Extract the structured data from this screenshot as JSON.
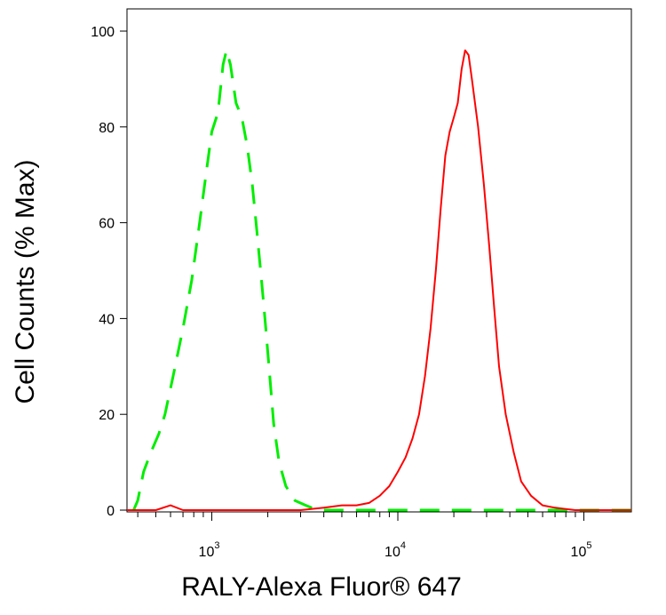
{
  "chart_data": {
    "type": "line",
    "xlabel": "RALY-Alexa Fluor® 647",
    "ylabel": "Cell Counts (% Max)",
    "x_scale": "log",
    "xlim": [
      350,
      180000
    ],
    "ylim": [
      0,
      100
    ],
    "yticks": [
      0,
      20,
      40,
      60,
      80,
      100
    ],
    "ytick_labels": [
      "0",
      "20",
      "40",
      "60",
      "80",
      "100"
    ],
    "xticks_major": [
      1000,
      10000,
      100000
    ],
    "xtick_bases": [
      "10",
      "10",
      "10"
    ],
    "xtick_exponents": [
      "3",
      "4",
      "5"
    ],
    "grid": false,
    "legend": "none",
    "series": [
      {
        "color": "#00ee00",
        "style": "dashed",
        "points": [
          [
            380,
            0
          ],
          [
            400,
            2
          ],
          [
            430,
            8
          ],
          [
            470,
            12
          ],
          [
            520,
            16
          ],
          [
            560,
            20
          ],
          [
            620,
            28
          ],
          [
            700,
            38
          ],
          [
            780,
            48
          ],
          [
            860,
            60
          ],
          [
            930,
            70
          ],
          [
            1000,
            79
          ],
          [
            1080,
            83
          ],
          [
            1150,
            93
          ],
          [
            1200,
            96
          ],
          [
            1260,
            93
          ],
          [
            1350,
            85
          ],
          [
            1450,
            82
          ],
          [
            1550,
            76
          ],
          [
            1650,
            68
          ],
          [
            1750,
            58
          ],
          [
            1850,
            48
          ],
          [
            1950,
            38
          ],
          [
            2050,
            28
          ],
          [
            2150,
            18
          ],
          [
            2300,
            10
          ],
          [
            2500,
            5
          ],
          [
            2800,
            2
          ],
          [
            3200,
            1
          ],
          [
            3700,
            0
          ],
          [
            5000,
            0
          ],
          [
            10000,
            0
          ],
          [
            30000,
            0
          ],
          [
            100000,
            0
          ],
          [
            180000,
            0
          ]
        ]
      },
      {
        "color": "#ff0000",
        "style": "solid",
        "points": [
          [
            350,
            0
          ],
          [
            500,
            0
          ],
          [
            600,
            1
          ],
          [
            700,
            0
          ],
          [
            1000,
            0
          ],
          [
            2000,
            0
          ],
          [
            3000,
            0
          ],
          [
            4000,
            0.5
          ],
          [
            5000,
            1
          ],
          [
            6000,
            1
          ],
          [
            7000,
            1.5
          ],
          [
            8000,
            3
          ],
          [
            9000,
            5
          ],
          [
            10000,
            8
          ],
          [
            11000,
            11
          ],
          [
            12000,
            15
          ],
          [
            13000,
            20
          ],
          [
            14000,
            28
          ],
          [
            15000,
            38
          ],
          [
            16000,
            50
          ],
          [
            17000,
            63
          ],
          [
            18000,
            74
          ],
          [
            19000,
            79
          ],
          [
            20000,
            82
          ],
          [
            21000,
            85
          ],
          [
            22000,
            92
          ],
          [
            23000,
            96
          ],
          [
            24000,
            95
          ],
          [
            25000,
            90
          ],
          [
            27000,
            80
          ],
          [
            29000,
            68
          ],
          [
            31000,
            55
          ],
          [
            33000,
            42
          ],
          [
            35000,
            30
          ],
          [
            38000,
            20
          ],
          [
            42000,
            12
          ],
          [
            46000,
            6
          ],
          [
            52000,
            3
          ],
          [
            60000,
            1
          ],
          [
            70000,
            0.5
          ],
          [
            90000,
            0
          ],
          [
            180000,
            0
          ]
        ]
      }
    ]
  }
}
